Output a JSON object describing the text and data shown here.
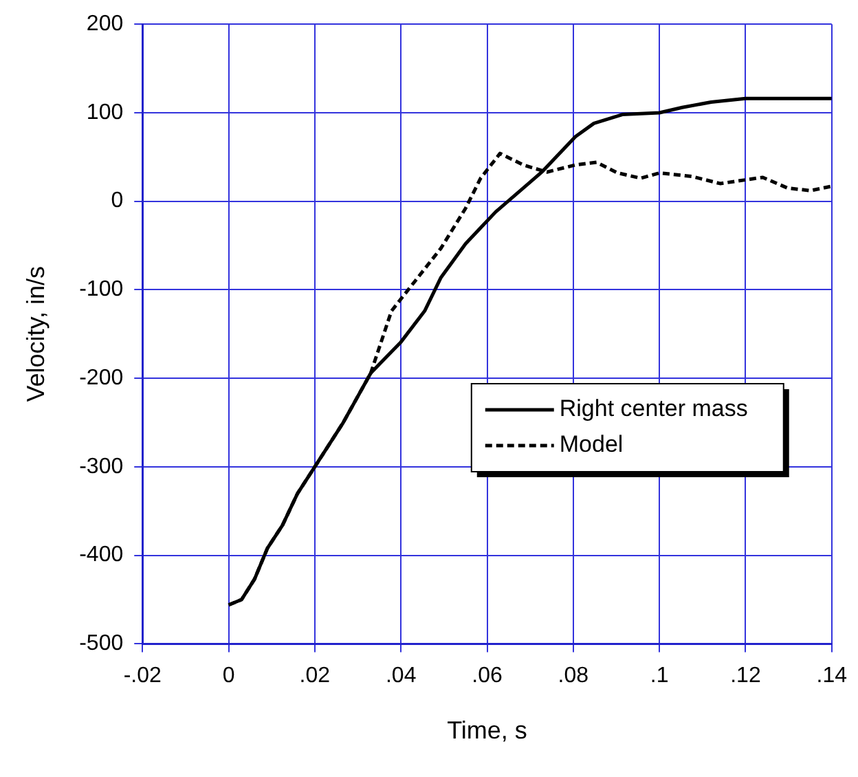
{
  "chart_data": {
    "type": "line",
    "xlabel": "Time, s",
    "ylabel": "Velocity, in/s",
    "xlim": [
      -0.02,
      0.14
    ],
    "xticks": [
      {
        "value": -0.02,
        "label": "-.02"
      },
      0,
      {
        "value": 0.02,
        "label": ".02"
      },
      {
        "value": 0.04,
        "label": ".04"
      },
      {
        "value": 0.06,
        "label": ".06"
      },
      {
        "value": 0.08,
        "label": ".08"
      },
      {
        "value": 0.1,
        "label": ".1"
      },
      {
        "value": 0.12,
        "label": ".12"
      },
      {
        "value": 0.14,
        "label": ".14"
      }
    ],
    "ylim": [
      -500,
      200
    ],
    "yticks": [
      -500,
      -400,
      -300,
      -200,
      -100,
      0,
      100,
      200
    ],
    "grid": true,
    "legend": "right",
    "marker": "none",
    "series": [
      {
        "name": "Right center mass",
        "color": "#000000",
        "line_style": "solid",
        "x": [
          0,
          0.003,
          0.006,
          0.009,
          0.0125,
          0.016,
          0.02,
          0.0266,
          0.033,
          0.04,
          0.0455,
          0.0493,
          0.055,
          0.0585,
          0.062,
          0.0727,
          0.0805,
          0.0848,
          0.0914,
          0.1,
          0.1053,
          0.112,
          0.12,
          0.14
        ],
        "values": [
          -456,
          -450,
          -427,
          -392,
          -366,
          -330,
          -300,
          -250,
          -194,
          -159,
          -124,
          -86,
          -48,
          -30,
          -12,
          33,
          73,
          88,
          98,
          100,
          106,
          112,
          116,
          116
        ]
      },
      {
        "name": "Model",
        "color": "#000000",
        "line_style": "dashed",
        "x": [
          0,
          0.003,
          0.006,
          0.009,
          0.0125,
          0.016,
          0.02,
          0.0266,
          0.033,
          0.0378,
          0.0493,
          0.055,
          0.0585,
          0.063,
          0.0684,
          0.0739,
          0.0805,
          0.0854,
          0.0903,
          0.0957,
          0.1,
          0.1076,
          0.1141,
          0.124,
          0.1297,
          0.135,
          0.14
        ],
        "values": [
          -456,
          -450,
          -427,
          -392,
          -366,
          -330,
          -300,
          -250,
          -194,
          -124,
          -53,
          -8,
          26,
          54,
          41,
          33,
          41,
          44,
          32,
          26,
          32,
          28,
          20,
          27,
          15,
          12,
          17
        ]
      }
    ]
  }
}
